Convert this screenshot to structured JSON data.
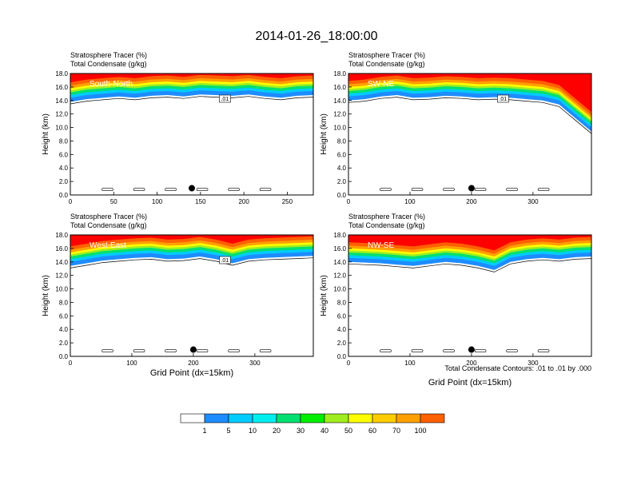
{
  "figure": {
    "title": "2014-01-26_18:00:00",
    "contour_note": "Total Condensate Contours: .01 to .01 by .000",
    "colorbar": {
      "levels": [
        "1",
        "5",
        "10",
        "20",
        "30",
        "40",
        "50",
        "60",
        "70",
        "100"
      ],
      "colors": [
        "#ffffff",
        "#1e8cff",
        "#00ccff",
        "#00eeee",
        "#00e070",
        "#00ee00",
        "#a0ee20",
        "#ffff00",
        "#ffcc00",
        "#ffa000",
        "#ff6000",
        "#ff0000"
      ]
    }
  },
  "chart_data": [
    {
      "type": "heatmap",
      "panel_label": "South-North",
      "title_line1": "Stratosphere Tracer   (%)",
      "title_line2": "Total Condensate   (g/kg)",
      "xlabel": "",
      "ylabel": "Height (km)",
      "xlim": [
        0,
        280
      ],
      "ylim": [
        0,
        18
      ],
      "xticks": [
        "0",
        "50",
        "100",
        "150",
        "200",
        "250"
      ],
      "xtick_values": [
        0,
        50,
        100,
        150,
        200,
        250
      ],
      "yticks": [
        "0.0",
        "2.0",
        "4.0",
        "6.0",
        "8.0",
        "10.0",
        "12.0",
        "14.0",
        "16.0",
        "18.0"
      ],
      "tropopause_km": [
        14.4,
        14.8,
        15.0,
        15.2,
        15.0,
        15.3,
        15.4,
        15.2,
        15.5,
        15.4,
        15.3,
        15.5,
        15.2,
        15.0,
        15.3,
        15.4
      ],
      "contour_label": ".01",
      "marker": {
        "x": 140,
        "y": 1.0
      }
    },
    {
      "type": "heatmap",
      "panel_label": "SW-NE",
      "title_line1": "Stratosphere Tracer   (%)",
      "title_line2": "Total Condensate   (g/kg)",
      "xlabel": "",
      "ylabel": "Height (km)",
      "xlim": [
        0,
        395
      ],
      "ylim": [
        0,
        18
      ],
      "xticks": [
        "0",
        "100",
        "200",
        "300"
      ],
      "xtick_values": [
        0,
        100,
        200,
        300
      ],
      "yticks": [
        "0.0",
        "2.0",
        "4.0",
        "6.0",
        "8.0",
        "10.0",
        "12.0",
        "14.0",
        "16.0",
        "18.0"
      ],
      "tropopause_km": [
        14.6,
        14.8,
        15.2,
        15.4,
        15.0,
        15.1,
        15.3,
        15.2,
        15.0,
        15.1,
        15.0,
        14.8,
        14.6,
        14.0,
        12.0,
        10.0
      ],
      "contour_label": ".01",
      "marker": {
        "x": 200,
        "y": 1.0
      }
    },
    {
      "type": "heatmap",
      "panel_label": "West-East",
      "title_line1": "Stratosphere Tracer   (%)",
      "title_line2": "Total Condensate   (g/kg)",
      "xlabel": "Grid Point (dx=15km)",
      "ylabel": "Height (km)",
      "xlim": [
        0,
        395
      ],
      "ylim": [
        0,
        18
      ],
      "xticks": [
        "0",
        "100",
        "200",
        "300"
      ],
      "xtick_values": [
        0,
        100,
        200,
        300
      ],
      "yticks": [
        "0.0",
        "2.0",
        "4.0",
        "6.0",
        "8.0",
        "10.0",
        "12.0",
        "14.0",
        "16.0",
        "18.0"
      ],
      "tropopause_km": [
        14.0,
        14.4,
        14.8,
        15.0,
        15.2,
        15.3,
        15.0,
        15.1,
        15.4,
        15.0,
        14.4,
        15.0,
        15.2,
        15.3,
        15.4,
        15.5
      ],
      "contour_label": ".01",
      "marker": {
        "x": 200,
        "y": 1.0
      }
    },
    {
      "type": "heatmap",
      "panel_label": "NW-SE",
      "title_line1": "Stratosphere Tracer   (%)",
      "title_line2": "Total Condensate   (g/kg)",
      "xlabel": "Grid Point (dx=15km)",
      "ylabel": "Height (km)",
      "xlim": [
        0,
        395
      ],
      "ylim": [
        0,
        18
      ],
      "xticks": [
        "0",
        "100",
        "200",
        "300"
      ],
      "xtick_values": [
        0,
        100,
        200,
        300
      ],
      "yticks": [
        "0.0",
        "2.0",
        "4.0",
        "6.0",
        "8.0",
        "10.0",
        "12.0",
        "14.0",
        "16.0",
        "18.0"
      ],
      "tropopause_km": [
        14.6,
        14.5,
        14.4,
        14.2,
        14.0,
        14.3,
        14.6,
        14.4,
        14.0,
        13.4,
        14.6,
        15.0,
        15.2,
        15.0,
        15.3,
        15.4
      ],
      "contour_label": "",
      "marker": {
        "x": 200,
        "y": 1.0
      }
    }
  ]
}
